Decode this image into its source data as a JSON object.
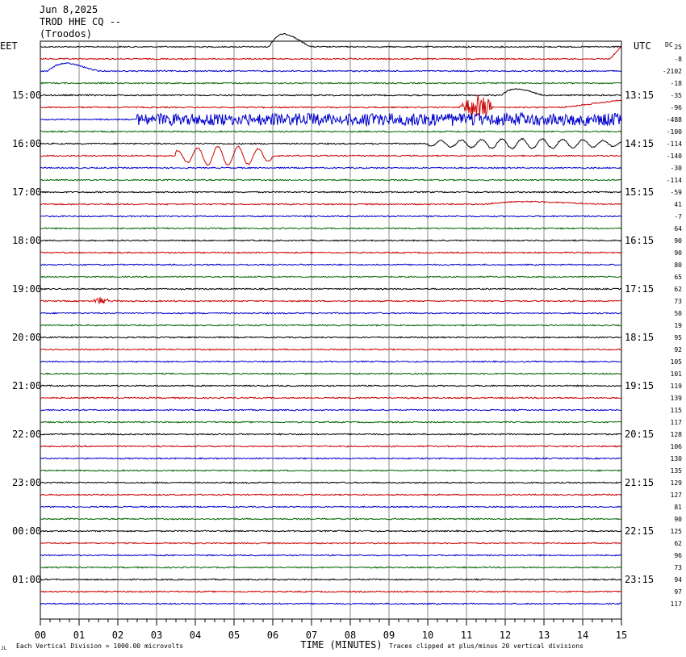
{
  "header": {
    "date": "Jun 8,2025",
    "station": "TROD HHE CQ --",
    "location": "(Troodos)"
  },
  "left_tz": "EET",
  "right_tz": "UTC",
  "footer": {
    "scale_note": "Each Vertical Division = 1000.00 microvolts",
    "xlabel": "TIME (MINUTES)",
    "clip_note": "Traces clipped at plus/minus 20 vertical divisions",
    "logo_mark": "JL"
  },
  "chart_data": {
    "type": "line",
    "title": "Jun 8,2025 TROD HHE CQ -- (Troodos)",
    "xlabel": "TIME (MINUTES)",
    "ylabel": "",
    "xlim": [
      0,
      15
    ],
    "x_ticks": [
      "00",
      "01",
      "02",
      "03",
      "04",
      "05",
      "06",
      "07",
      "08",
      "09",
      "10",
      "11",
      "12",
      "13",
      "14",
      "15"
    ],
    "grid": true,
    "trace_colors": [
      "#000000",
      "#cc0000",
      "#0000cc",
      "#006600"
    ],
    "left_time_labels": [
      "15:00",
      "16:00",
      "17:00",
      "18:00",
      "19:00",
      "20:00",
      "21:00",
      "22:00",
      "23:00",
      "00:00",
      "01:00"
    ],
    "right_time_labels": [
      "13:15",
      "14:15",
      "15:15",
      "16:15",
      "17:15",
      "18:15",
      "19:15",
      "20:15",
      "21:15",
      "22:15",
      "23:15"
    ],
    "dc_offsets": [
      "25",
      "-8",
      "-2102",
      "-18",
      "-35",
      "-96",
      "-488",
      "-100",
      "-114",
      "-140",
      "-30",
      "-114",
      "-59",
      "41",
      "-7",
      "64",
      "90",
      "90",
      "80",
      "65",
      "62",
      "73",
      "50",
      "19",
      "95",
      "92",
      "105",
      "101",
      "119",
      "139",
      "115",
      "117",
      "128",
      "106",
      "130",
      "135",
      "129",
      "127",
      "81",
      "90",
      "125",
      "62",
      "96",
      "73",
      "94",
      "97",
      "117"
    ],
    "dc_label": "DC",
    "events": [
      {
        "trace": 0,
        "start_min": 5.9,
        "end_min": 7.0,
        "kind": "pulse",
        "amplitude_div": 2.0
      },
      {
        "trace": 1,
        "start_min": 14.7,
        "end_min": 15.0,
        "kind": "ramp",
        "amplitude_div": 1.0
      },
      {
        "trace": 2,
        "start_min": 0.2,
        "end_min": 1.5,
        "kind": "pulse",
        "amplitude_div": 1.2
      },
      {
        "trace": 4,
        "start_min": 11.9,
        "end_min": 13.0,
        "kind": "pulse",
        "amplitude_div": 1.0
      },
      {
        "trace": 5,
        "start_min": 10.8,
        "end_min": 11.8,
        "kind": "burst",
        "amplitude_div": 1.0
      },
      {
        "trace": 5,
        "start_min": 13.5,
        "end_min": 15.0,
        "kind": "ramp",
        "amplitude_div": 0.6
      },
      {
        "trace": 6,
        "start_min": 2.5,
        "end_min": 15.0,
        "kind": "noise",
        "amplitude_div": 0.5
      },
      {
        "trace": 8,
        "start_min": 10.0,
        "end_min": 15.0,
        "kind": "wave",
        "amplitude_div": 0.4
      },
      {
        "trace": 9,
        "start_min": 3.5,
        "end_min": 6.0,
        "kind": "wave",
        "amplitude_div": 0.8
      },
      {
        "trace": 13,
        "start_min": 11.5,
        "end_min": 14.5,
        "kind": "pulse",
        "amplitude_div": 0.4
      },
      {
        "trace": 21,
        "start_min": 1.3,
        "end_min": 1.9,
        "kind": "burst",
        "amplitude_div": 0.3
      }
    ]
  }
}
